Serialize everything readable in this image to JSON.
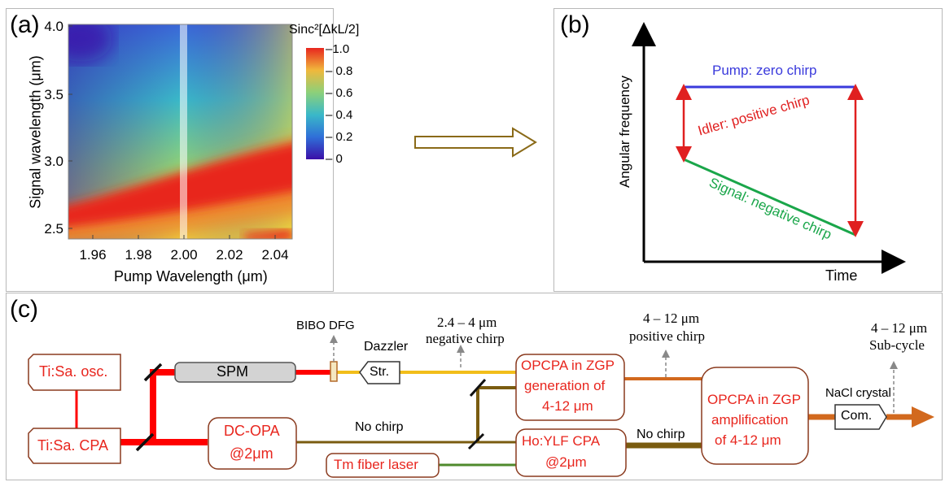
{
  "panel_a": {
    "label": "(a)",
    "xlabel": "Pump Wavelength (μm)",
    "ylabel": "Signal wavelength (μm)",
    "colorbar_title": "Sinc²[ΔkL/2]",
    "colors": [
      "#3b0fa8",
      "#2f6fd8",
      "#3ab8c8",
      "#8cd07a",
      "#f0d23c",
      "#ee7f2d",
      "#e8261e"
    ]
  },
  "panel_b": {
    "label": "(b)",
    "ylabel": "Angular frequency",
    "xlabel": "Time",
    "pump": "Pump: zero chirp",
    "idler": "Idler: positive chirp",
    "signal": "Signal: negative chirp",
    "colors": {
      "pump": "#3a3adc",
      "idler": "#e02020",
      "signal": "#1aa64a"
    }
  },
  "panel_c": {
    "label": "(c)",
    "boxes": {
      "ti_osc": "Ti:Sa. osc.",
      "ti_cpa": "Ti:Sa. CPA",
      "spm": "SPM",
      "dc_opa_1": "DC-OPA",
      "dc_opa_2": "@2μm",
      "tm": "Tm fiber laser",
      "str": "Str.",
      "opcpa1_1": "OPCPA in ZGP",
      "opcpa1_2": "generation of",
      "opcpa1_3": "4-12 μm",
      "ho_1": "Ho:YLF CPA",
      "ho_2": "@2μm",
      "opcpa2_1": "OPCPA in ZGP",
      "opcpa2_2": "amplification",
      "opcpa2_3": "of 4-12 μm",
      "com": "Com."
    },
    "labels": {
      "bibo": "BIBO DFG",
      "dazzler": "Dazzler",
      "sig1": "2.4 – 4 μm",
      "sig2": "negative chirp",
      "idl1": "4 – 12 μm",
      "idl2": "positive chirp",
      "out1": "4 – 12 μm",
      "out2": "Sub-cycle",
      "nochirp1": "No chirp",
      "nochirp2": "No chirp",
      "nacl": "NaCl crystal"
    },
    "colors": {
      "box_text": "#e8261e",
      "box_border": "#8a3a1e",
      "red_beam": "#ff0000",
      "yellow_beam": "#f2be1a",
      "olive_beam": "#7a5c10",
      "green_beam": "#4f8a2c",
      "orange_beam": "#d2691e"
    }
  },
  "chart_data": {
    "type": "heatmap",
    "title": "",
    "xlabel": "Pump Wavelength (μm)",
    "ylabel": "Signal wavelength (μm)",
    "xlim": [
      1.95,
      2.05
    ],
    "ylim": [
      2.4,
      4.0
    ],
    "x_ticks": [
      "1.96",
      "1.98",
      "2.00",
      "2.02",
      "2.04"
    ],
    "y_ticks": [
      "2.5",
      "3.0",
      "3.5",
      "4.0"
    ],
    "colorbar": {
      "title": "Sinc²[ΔkL/2]",
      "range": [
        0,
        1.0
      ],
      "ticks": [
        "0",
        "0.2",
        "0.4",
        "0.6",
        "0.8",
        "1.0"
      ]
    },
    "value_description": "Phase-matching efficiency near 1.0 along a band from about 2.5 μm (1.95 μm pump) to about 3.0 μm (2.05 μm pump); lowest near 4.0 μm signal at 1.95 μm pump.",
    "highlight_x": 2.0
  }
}
